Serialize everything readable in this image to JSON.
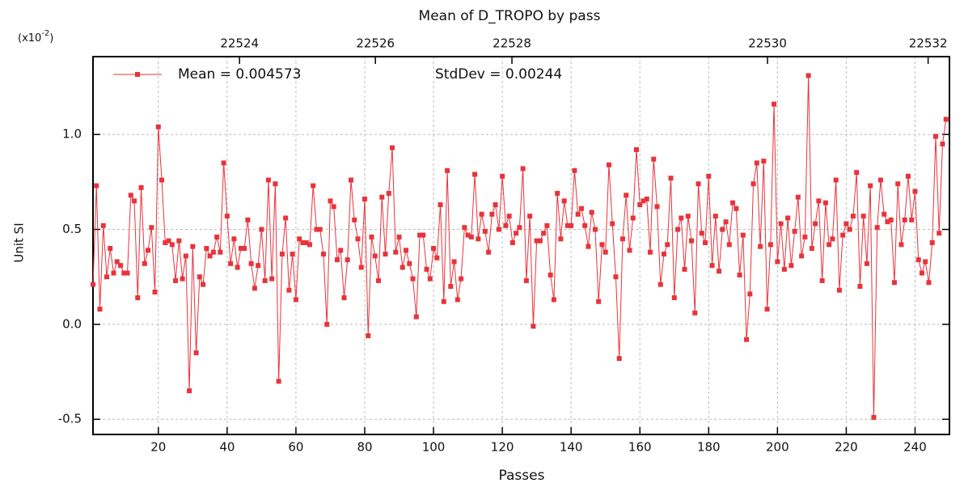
{
  "chart_data": {
    "type": "line",
    "title": "Mean of D_TROPO by pass",
    "xlabel": "Passes",
    "ylabel": "Unit SI",
    "y_multiplier": {
      "prefix": "(x10",
      "exponent": "-2",
      "suffix": ")"
    },
    "annotations": [
      "StdDev = 0.00244"
    ],
    "xlim": [
      1,
      250
    ],
    "ylim": [
      -0.58,
      1.41
    ],
    "xticks": [
      20,
      40,
      60,
      80,
      100,
      120,
      140,
      160,
      180,
      200,
      220,
      240
    ],
    "x2ticks": [
      {
        "value": 43.6,
        "label": "22524"
      },
      {
        "value": 83.1,
        "label": "22526"
      },
      {
        "value": 122.8,
        "label": "22528"
      },
      {
        "value": 197.1,
        "label": "22530"
      },
      {
        "value": 243.8,
        "label": "22532"
      }
    ],
    "yticks": [
      -0.5,
      {
        "value": 0,
        "label": "0.0"
      },
      0.5,
      {
        "value": 1,
        "label": "1.0"
      }
    ],
    "grid": true,
    "x_start": 1,
    "series": [
      {
        "name": "Mean = 0.004573",
        "color": "#e8333b",
        "values": [
          0.21,
          0.73,
          0.08,
          0.52,
          0.25,
          0.4,
          0.27,
          0.33,
          0.31,
          0.27,
          0.27,
          0.68,
          0.65,
          0.14,
          0.72,
          0.32,
          0.39,
          0.51,
          0.17,
          1.04,
          0.76,
          0.43,
          0.44,
          0.42,
          0.23,
          0.44,
          0.24,
          0.36,
          -0.35,
          0.41,
          -0.15,
          0.25,
          0.21,
          0.4,
          0.36,
          0.38,
          0.46,
          0.38,
          0.85,
          0.57,
          0.32,
          0.45,
          0.3,
          0.4,
          0.4,
          0.55,
          0.32,
          0.19,
          0.31,
          0.5,
          0.23,
          0.76,
          0.24,
          0.74,
          -0.3,
          0.37,
          0.56,
          0.18,
          0.37,
          0.13,
          0.45,
          0.43,
          0.43,
          0.42,
          0.73,
          0.5,
          0.5,
          0.37,
          0.0,
          0.65,
          0.62,
          0.34,
          0.39,
          0.14,
          0.34,
          0.76,
          0.55,
          0.45,
          0.3,
          0.66,
          -0.06,
          0.46,
          0.36,
          0.23,
          0.67,
          0.37,
          0.69,
          0.93,
          0.38,
          0.46,
          0.3,
          0.39,
          0.32,
          0.24,
          0.04,
          0.47,
          0.47,
          0.29,
          0.24,
          0.4,
          0.35,
          0.63,
          0.12,
          0.81,
          0.2,
          0.33,
          0.13,
          0.24,
          0.51,
          0.47,
          0.46,
          0.79,
          0.45,
          0.58,
          0.49,
          0.38,
          0.58,
          0.63,
          0.5,
          0.78,
          0.52,
          0.57,
          0.43,
          0.48,
          0.51,
          0.82,
          0.23,
          0.57,
          -0.01,
          0.44,
          0.44,
          0.48,
          0.52,
          0.26,
          0.13,
          0.69,
          0.45,
          0.65,
          0.52,
          0.52,
          0.81,
          0.58,
          0.61,
          0.52,
          0.41,
          0.59,
          0.5,
          0.12,
          0.42,
          0.38,
          0.84,
          0.53,
          0.25,
          -0.18,
          0.45,
          0.68,
          0.39,
          0.56,
          0.92,
          0.63,
          0.65,
          0.66,
          0.38,
          0.87,
          0.62,
          0.21,
          0.37,
          0.42,
          0.77,
          0.14,
          0.5,
          0.56,
          0.29,
          0.57,
          0.44,
          0.06,
          0.74,
          0.48,
          0.43,
          0.78,
          0.31,
          0.57,
          0.28,
          0.5,
          0.54,
          0.42,
          0.64,
          0.61,
          0.26,
          0.47,
          -0.08,
          0.16,
          0.74,
          0.85,
          0.41,
          0.86,
          0.08,
          0.42,
          1.16,
          0.33,
          0.53,
          0.29,
          0.56,
          0.31,
          0.49,
          0.67,
          0.36,
          0.46,
          1.31,
          0.4,
          0.53,
          0.65,
          0.23,
          0.64,
          0.42,
          0.45,
          0.76,
          0.18,
          0.47,
          0.53,
          0.5,
          0.57,
          0.8,
          0.2,
          0.57,
          0.32,
          0.73,
          -0.49,
          0.51,
          0.76,
          0.58,
          0.54,
          0.55,
          0.22,
          0.74,
          0.42,
          0.55,
          0.78,
          0.55,
          0.7,
          0.34,
          0.27,
          0.33,
          0.22,
          0.43,
          0.99,
          0.48,
          0.95,
          1.08
        ]
      }
    ]
  }
}
